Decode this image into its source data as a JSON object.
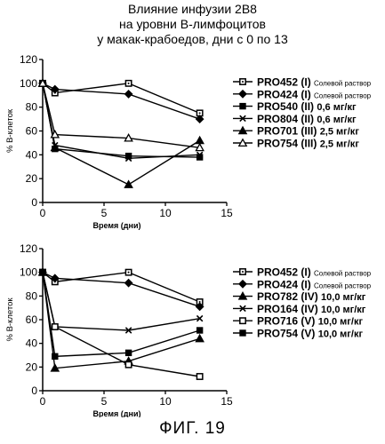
{
  "title_lines": [
    "Влияние инфузии 2B8",
    "на уровни B-лимфоцитов",
    "у макак-крабоедов, дни с 0 по 13"
  ],
  "figure_label": "ФИГ. 19",
  "chart_data": [
    {
      "type": "line",
      "title": "",
      "xlabel": "Время (дни)",
      "ylabel": "% B-клеток",
      "xlim": [
        0,
        15
      ],
      "ylim": [
        0,
        120
      ],
      "xticks": [
        0,
        5,
        10,
        15
      ],
      "yticks": [
        0,
        20,
        40,
        60,
        80,
        100,
        120
      ],
      "grid": false,
      "legend": "right",
      "series": [
        {
          "name": "PRO452",
          "group": "(I)",
          "treatment": "Солевой раствор",
          "marker": "square-dot",
          "x": [
            0,
            1,
            7,
            12.8
          ],
          "y": [
            100,
            92,
            100,
            75
          ]
        },
        {
          "name": "PRO424",
          "group": "(I)",
          "treatment": "Солевой раствор",
          "marker": "diamond",
          "x": [
            0,
            1,
            7,
            12.8
          ],
          "y": [
            100,
            95,
            91,
            70
          ]
        },
        {
          "name": "PRO540",
          "group": "(II)",
          "treatment": "0,6 мг/кг",
          "marker": "square-filled",
          "x": [
            0,
            1,
            7,
            12.8
          ],
          "y": [
            100,
            45,
            39,
            38
          ]
        },
        {
          "name": "PRO804",
          "group": "(II)",
          "treatment": "0,6 мг/кг",
          "marker": "x",
          "x": [
            0,
            1,
            7,
            12.8
          ],
          "y": [
            100,
            48,
            37,
            40
          ]
        },
        {
          "name": "PRO701",
          "group": "(III)",
          "treatment": "2,5 мг/кг",
          "marker": "triangle-filled",
          "x": [
            0,
            1,
            7,
            12.8
          ],
          "y": [
            100,
            46,
            15,
            52
          ]
        },
        {
          "name": "PRO754",
          "group": "(III)",
          "treatment": "2,5 мг/кг",
          "marker": "triangle-open",
          "x": [
            0,
            1,
            7,
            12.8
          ],
          "y": [
            100,
            57,
            54,
            46
          ]
        }
      ]
    },
    {
      "type": "line",
      "title": "",
      "xlabel": "Время (дни)",
      "ylabel": "% B-клеток",
      "xlim": [
        0,
        15
      ],
      "ylim": [
        0,
        120
      ],
      "xticks": [
        0,
        5,
        10,
        15
      ],
      "yticks": [
        0,
        20,
        40,
        60,
        80,
        100,
        120
      ],
      "grid": false,
      "legend": "right",
      "series": [
        {
          "name": "PRO452",
          "group": "(I)",
          "treatment": "Солевой раствор",
          "marker": "square-dot",
          "x": [
            0,
            1,
            7,
            12.8
          ],
          "y": [
            100,
            92,
            100,
            75
          ]
        },
        {
          "name": "PRO424",
          "group": "(I)",
          "treatment": "Солевой раствор",
          "marker": "diamond",
          "x": [
            0,
            1,
            7,
            12.8
          ],
          "y": [
            100,
            95,
            91,
            71
          ]
        },
        {
          "name": "PRO782",
          "group": "(IV)",
          "treatment": "10,0 мг/кг",
          "marker": "triangle-filled",
          "x": [
            0,
            1,
            7,
            12.8
          ],
          "y": [
            100,
            19,
            25,
            44
          ]
        },
        {
          "name": "PRO164",
          "group": "(IV)",
          "treatment": "10,0 мг/кг",
          "marker": "x",
          "x": [
            0,
            1,
            7,
            12.8
          ],
          "y": [
            100,
            54,
            51,
            61
          ]
        },
        {
          "name": "PRO716",
          "group": "(V)",
          "treatment": "10,0 мг/кг",
          "marker": "square-open",
          "x": [
            0,
            1,
            7,
            12.8
          ],
          "y": [
            100,
            54,
            22,
            12
          ]
        },
        {
          "name": "PRO754",
          "group": "(V)",
          "treatment": "10,0 мг/кг",
          "marker": "square-filled",
          "x": [
            0,
            1,
            7,
            12.8
          ],
          "y": [
            100,
            29,
            32,
            51
          ]
        }
      ]
    }
  ]
}
